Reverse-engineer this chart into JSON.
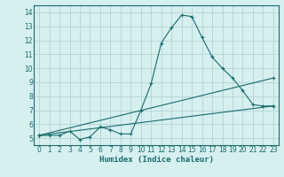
{
  "xlabel": "Humidex (Indice chaleur)",
  "bg_color": "#d6efef",
  "grid_color": "#b8d8d8",
  "line_color": "#1a6b6b",
  "xlim": [
    -0.5,
    23.5
  ],
  "ylim": [
    4.5,
    14.5
  ],
  "xticks": [
    0,
    1,
    2,
    3,
    4,
    5,
    6,
    7,
    8,
    9,
    10,
    11,
    12,
    13,
    14,
    15,
    16,
    17,
    18,
    19,
    20,
    21,
    22,
    23
  ],
  "yticks": [
    5,
    6,
    7,
    8,
    9,
    10,
    11,
    12,
    13,
    14
  ],
  "series1_x": [
    0,
    1,
    2,
    3,
    4,
    5,
    6,
    7,
    8,
    9,
    10,
    11,
    12,
    13,
    14,
    15,
    16,
    17,
    18,
    19,
    20,
    21,
    22,
    23
  ],
  "series1_y": [
    5.2,
    5.2,
    5.2,
    5.5,
    4.9,
    5.1,
    5.8,
    5.6,
    5.3,
    5.3,
    7.0,
    8.9,
    11.8,
    12.9,
    13.8,
    13.7,
    12.2,
    10.8,
    10.0,
    9.3,
    8.4,
    7.4,
    7.3,
    7.3
  ],
  "series2_x": [
    0,
    23
  ],
  "series2_y": [
    5.2,
    9.3
  ],
  "series3_x": [
    0,
    23
  ],
  "series3_y": [
    5.2,
    7.3
  ]
}
